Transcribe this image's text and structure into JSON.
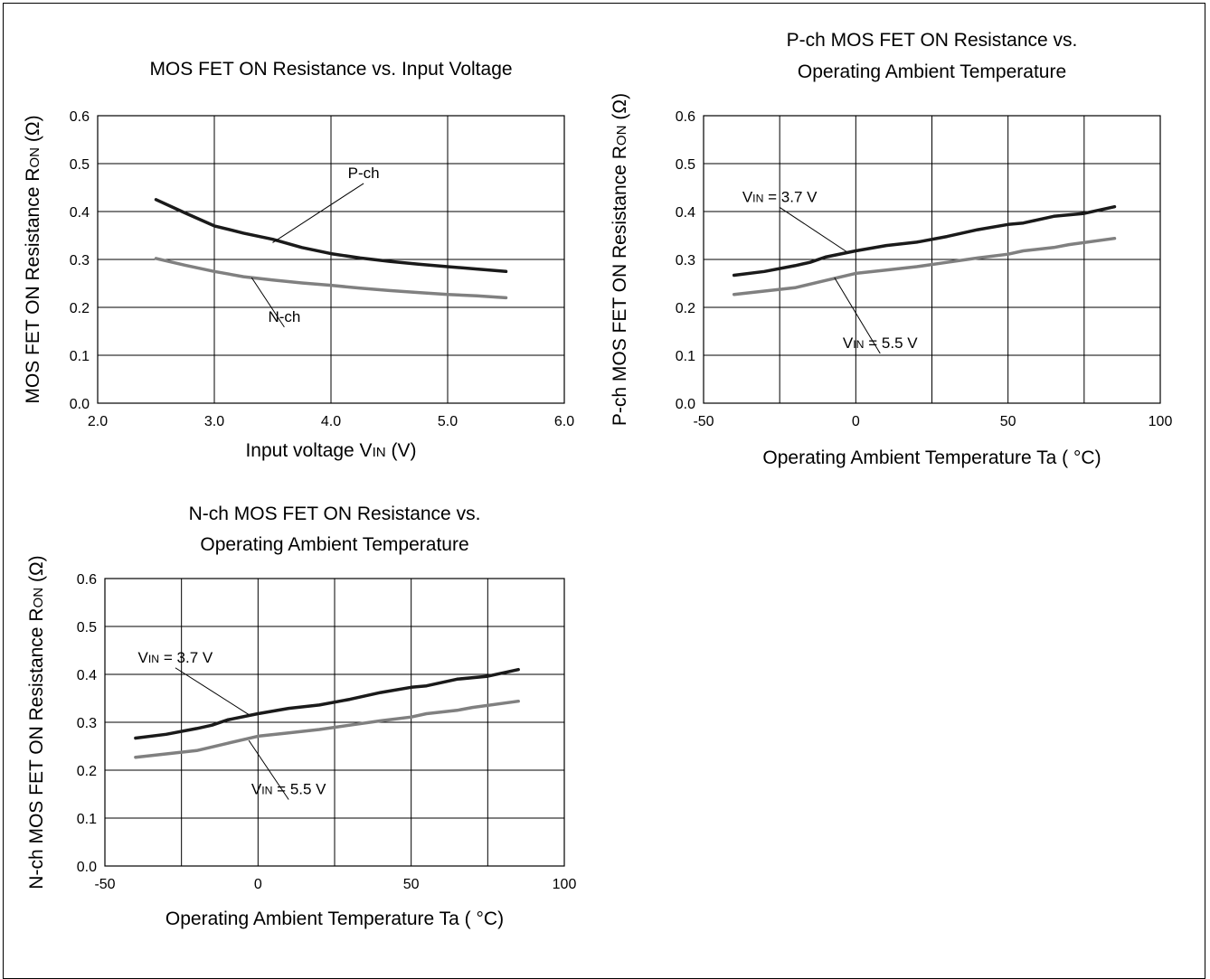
{
  "colors": {
    "dark_series": "#1a1a1a",
    "light_series": "#808080",
    "grid": "#000000"
  },
  "chart_data": [
    {
      "type": "line",
      "title_lines": [
        "MOS FET ON Resistance vs. Input Voltage"
      ],
      "ylabel": {
        "main": "MOS FET ON Resistance R",
        "sub": "ON",
        "tail": " (Ω)"
      },
      "xlabel": {
        "main": "Input voltage V",
        "sub": "IN",
        "tail": " (V)"
      },
      "xlim": [
        2.0,
        6.0
      ],
      "ylim": [
        0.0,
        0.6
      ],
      "xticks": [
        2.0,
        3.0,
        4.0,
        5.0,
        6.0
      ],
      "xtick_labels": [
        "2.0",
        "3.0",
        "4.0",
        "5.0",
        "6.0"
      ],
      "yticks": [
        0.0,
        0.1,
        0.2,
        0.3,
        0.4,
        0.5,
        0.6
      ],
      "ytick_labels": [
        "0.0",
        "0.1",
        "0.2",
        "0.3",
        "0.4",
        "0.5",
        "0.6"
      ],
      "grid": true,
      "series": [
        {
          "name": "P-ch",
          "color": "#1a1a1a",
          "x": [
            2.5,
            2.75,
            3.0,
            3.25,
            3.5,
            3.75,
            4.0,
            4.25,
            4.5,
            4.75,
            5.0,
            5.25,
            5.5
          ],
          "y": [
            0.425,
            0.397,
            0.37,
            0.355,
            0.342,
            0.325,
            0.312,
            0.303,
            0.296,
            0.29,
            0.285,
            0.28,
            0.275
          ]
        },
        {
          "name": "N-ch",
          "color": "#808080",
          "x": [
            2.5,
            2.75,
            3.0,
            3.25,
            3.5,
            3.75,
            4.0,
            4.25,
            4.5,
            4.75,
            5.0,
            5.25,
            5.5
          ],
          "y": [
            0.302,
            0.288,
            0.275,
            0.264,
            0.257,
            0.251,
            0.246,
            0.24,
            0.235,
            0.231,
            0.227,
            0.224,
            0.22
          ]
        }
      ],
      "annotations": [
        {
          "label": "P-ch",
          "x": 3.5,
          "y": 0.335,
          "text_x": 4.28,
          "text_y": 0.47
        },
        {
          "label": "N-ch",
          "x": 3.32,
          "y": 0.262,
          "text_x": 3.6,
          "text_y": 0.17
        }
      ]
    },
    {
      "type": "line",
      "title_lines": [
        "P-ch MOS FET ON Resistance vs.",
        "Operating Ambient Temperature"
      ],
      "ylabel": {
        "main": "P-ch MOS FET ON Resistance R",
        "sub": "ON",
        "tail": " (Ω)"
      },
      "xlabel": {
        "main": "Operating Ambient Temperature Ta ( °C)",
        "sub": "",
        "tail": ""
      },
      "xlim": [
        -50,
        100
      ],
      "ylim": [
        0.0,
        0.6
      ],
      "xticks": [
        -50,
        0,
        50,
        100
      ],
      "xtick_labels": [
        "-50",
        "0",
        "50",
        "100"
      ],
      "minor_xticks": [
        -25,
        25,
        75
      ],
      "yticks": [
        0.0,
        0.1,
        0.2,
        0.3,
        0.4,
        0.5,
        0.6
      ],
      "ytick_labels": [
        "0.0",
        "0.1",
        "0.2",
        "0.3",
        "0.4",
        "0.5",
        "0.6"
      ],
      "grid": true,
      "series": [
        {
          "name": "V_IN = 3.7 V",
          "color": "#1a1a1a",
          "x": [
            -40,
            -30,
            -20,
            -15,
            -10,
            0,
            10,
            20,
            30,
            40,
            50,
            55,
            65,
            75,
            85
          ],
          "y": [
            0.267,
            0.275,
            0.287,
            0.294,
            0.305,
            0.318,
            0.329,
            0.336,
            0.348,
            0.362,
            0.373,
            0.376,
            0.39,
            0.396,
            0.41
          ]
        },
        {
          "name": "V_IN = 5.5 V",
          "color": "#808080",
          "x": [
            -40,
            -30,
            -20,
            -10,
            0,
            10,
            20,
            30,
            40,
            50,
            55,
            65,
            70,
            85
          ],
          "y": [
            0.227,
            0.234,
            0.241,
            0.256,
            0.271,
            0.278,
            0.285,
            0.294,
            0.303,
            0.311,
            0.318,
            0.325,
            0.331,
            0.344
          ]
        }
      ],
      "annotations": [
        {
          "label": {
            "main": "V",
            "sub": "IN",
            "tail": " = 3.7 V"
          },
          "x": -3,
          "y": 0.316,
          "text_x": -25,
          "text_y": 0.42
        },
        {
          "label": {
            "main": "V",
            "sub": "IN",
            "tail": " = 5.5 V"
          },
          "x": -7,
          "y": 0.262,
          "text_x": 8,
          "text_y": 0.115
        }
      ]
    },
    {
      "type": "line",
      "title_lines": [
        "N-ch MOS FET ON Resistance vs.",
        "Operating Ambient Temperature"
      ],
      "ylabel": {
        "main": "N-ch MOS FET ON Resistance R",
        "sub": "ON",
        "tail": " (Ω)"
      },
      "xlabel": {
        "main": "Operating Ambient Temperature Ta ( °C)",
        "sub": "",
        "tail": ""
      },
      "xlim": [
        -50,
        100
      ],
      "ylim": [
        0.0,
        0.6
      ],
      "xticks": [
        -50,
        0,
        50,
        100
      ],
      "xtick_labels": [
        "-50",
        "0",
        "50",
        "100"
      ],
      "minor_xticks": [
        -25,
        25,
        75
      ],
      "yticks": [
        0.0,
        0.1,
        0.2,
        0.3,
        0.4,
        0.5,
        0.6
      ],
      "ytick_labels": [
        "0.0",
        "0.1",
        "0.2",
        "0.3",
        "0.4",
        "0.5",
        "0.6"
      ],
      "grid": true,
      "series": [
        {
          "name": "V_IN = 3.7 V",
          "color": "#1a1a1a",
          "x": [
            -40,
            -30,
            -20,
            -15,
            -10,
            0,
            10,
            20,
            30,
            40,
            50,
            55,
            65,
            75,
            85
          ],
          "y": [
            0.267,
            0.275,
            0.287,
            0.294,
            0.305,
            0.318,
            0.329,
            0.336,
            0.348,
            0.362,
            0.373,
            0.376,
            0.39,
            0.396,
            0.41
          ]
        },
        {
          "name": "V_IN = 5.5 V",
          "color": "#808080",
          "x": [
            -40,
            -30,
            -20,
            -10,
            0,
            10,
            20,
            30,
            40,
            50,
            55,
            65,
            70,
            85
          ],
          "y": [
            0.227,
            0.234,
            0.241,
            0.256,
            0.271,
            0.278,
            0.285,
            0.294,
            0.303,
            0.311,
            0.318,
            0.325,
            0.331,
            0.344
          ]
        }
      ],
      "annotations": [
        {
          "label": {
            "main": "V",
            "sub": "IN",
            "tail": " = 3.7 V"
          },
          "x": -3,
          "y": 0.316,
          "text_x": -27,
          "text_y": 0.425
        },
        {
          "label": {
            "main": "V",
            "sub": "IN",
            "tail": " = 5.5 V"
          },
          "x": -3,
          "y": 0.262,
          "text_x": 10,
          "text_y": 0.15
        }
      ]
    }
  ]
}
